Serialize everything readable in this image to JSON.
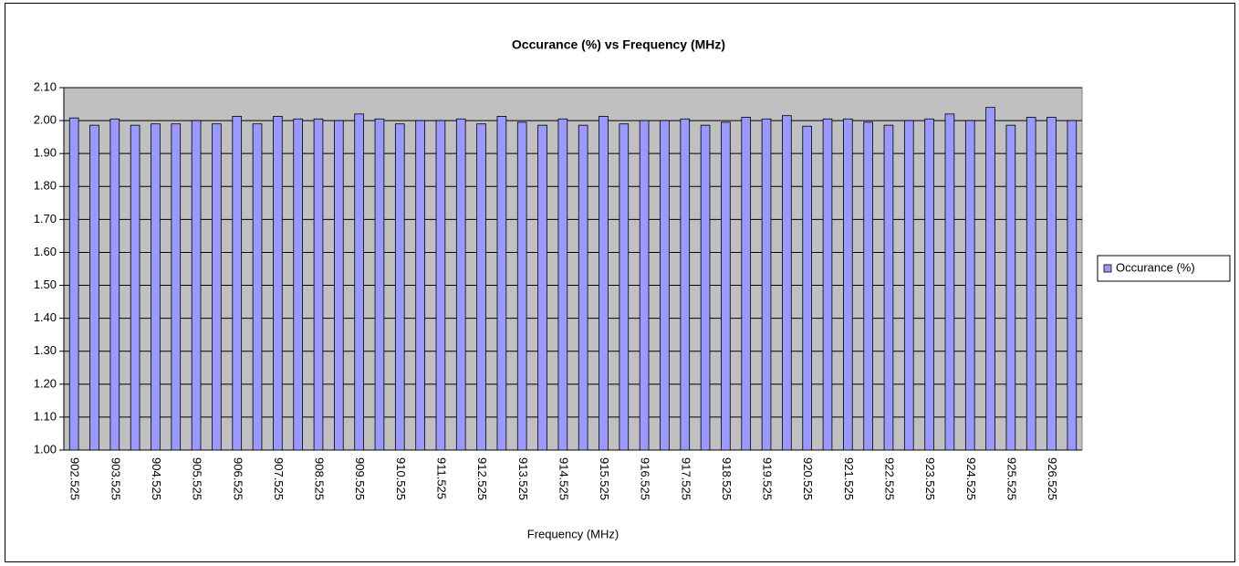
{
  "chart_data": {
    "type": "bar",
    "title": "Occurance (%) vs Frequency (MHz)",
    "x_label": "Frequency (MHz)",
    "categories": [
      "902.525",
      null,
      "903.525",
      null,
      "904.525",
      null,
      "905.525",
      null,
      "906.525",
      null,
      "907.525",
      null,
      "908.525",
      null,
      "909.525",
      null,
      "910.525",
      null,
      "911.525",
      null,
      "912.525",
      null,
      "913.525",
      null,
      "914.525",
      null,
      "915.525",
      null,
      "916.525",
      null,
      "917.525",
      null,
      "918.525",
      null,
      "919.525",
      null,
      "920.525",
      null,
      "921.525",
      null,
      "922.525",
      null,
      "923.525",
      null,
      "924.525",
      null,
      "925.525",
      null,
      "926.525",
      null
    ],
    "series": [
      {
        "name": "Occurance (%)",
        "color": "#9999ff",
        "values": [
          2.008,
          1.986,
          2.005,
          1.986,
          1.99,
          1.99,
          2.0,
          1.99,
          2.013,
          1.99,
          2.013,
          2.005,
          2.005,
          2.0,
          2.02,
          2.005,
          1.99,
          2.0,
          2.0,
          2.005,
          1.99,
          2.013,
          1.995,
          1.986,
          2.005,
          1.986,
          2.013,
          1.99,
          2.0,
          2.0,
          2.005,
          1.986,
          1.995,
          2.01,
          2.005,
          2.015,
          1.983,
          2.005,
          2.005,
          1.995,
          1.986,
          2.0,
          2.005,
          2.02,
          2.0,
          2.04,
          1.986,
          2.01,
          2.01,
          2.0
        ]
      }
    ],
    "ylim": [
      1.0,
      2.1
    ],
    "yticks": [
      {
        "value": 1.0,
        "label": "1.00"
      },
      {
        "value": 1.1,
        "label": "1.10"
      },
      {
        "value": 1.2,
        "label": "1.20"
      },
      {
        "value": 1.3,
        "label": "1.30"
      },
      {
        "value": 1.4,
        "label": "1.40"
      },
      {
        "value": 1.5,
        "label": "1.50"
      },
      {
        "value": 1.6,
        "label": "1.60"
      },
      {
        "value": 1.7,
        "label": "1.70"
      },
      {
        "value": 1.8,
        "label": "1.80"
      },
      {
        "value": 1.9,
        "label": "1.90"
      },
      {
        "value": 2.0,
        "label": "2.00"
      },
      {
        "value": 2.1,
        "label": "2.10"
      }
    ],
    "grid": true,
    "legend": "right"
  }
}
